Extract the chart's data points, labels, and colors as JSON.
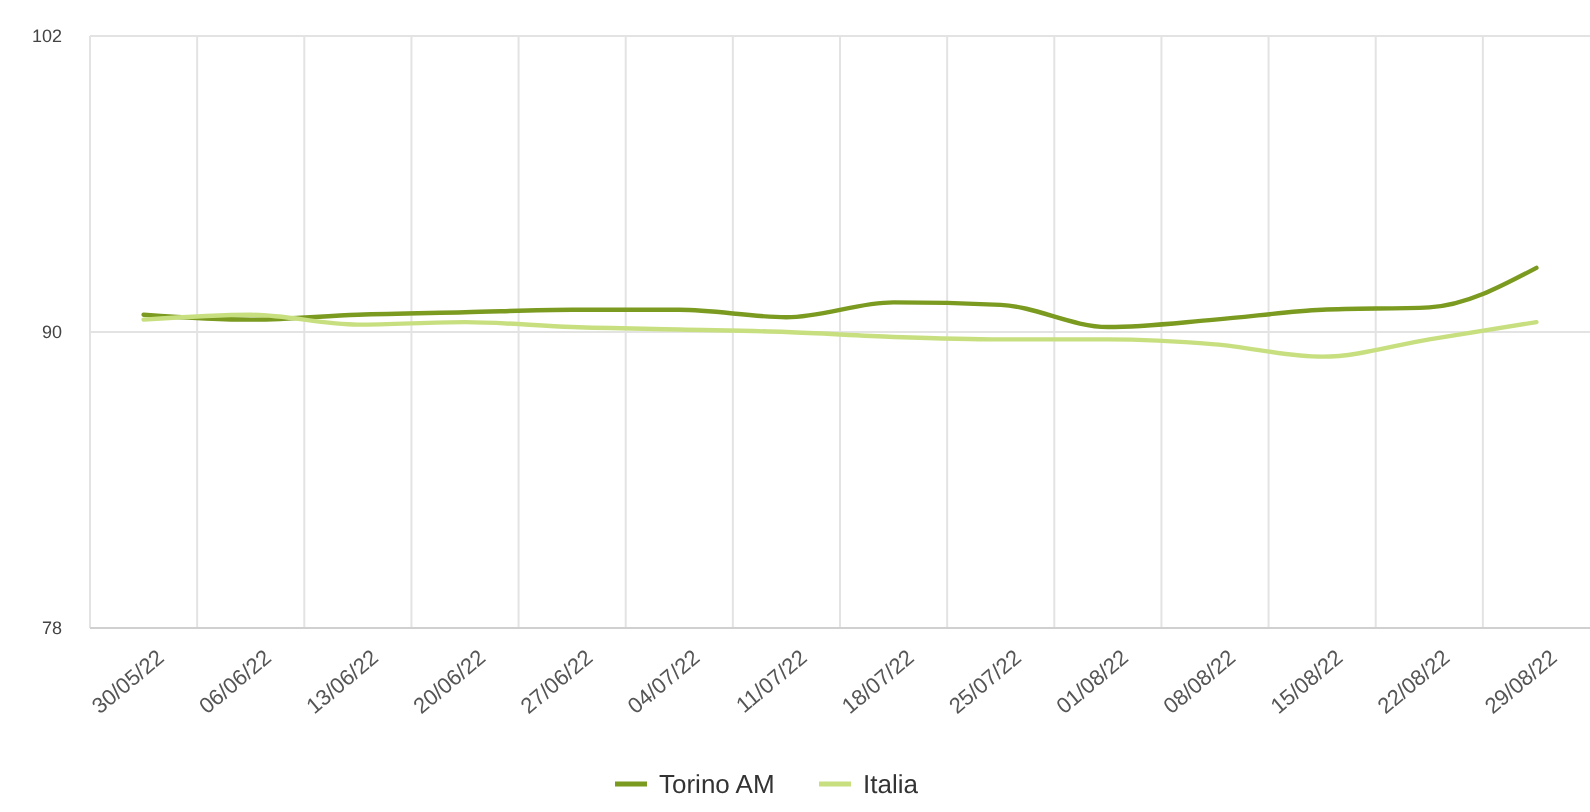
{
  "chart_data": {
    "type": "line",
    "categories": [
      "30/05/22",
      "06/06/22",
      "13/06/22",
      "20/06/22",
      "27/06/22",
      "04/07/22",
      "11/07/22",
      "18/07/22",
      "25/07/22",
      "01/08/22",
      "08/08/22",
      "15/08/22",
      "22/08/22",
      "29/08/22"
    ],
    "series": [
      {
        "name": "Torino AM",
        "color": "#7b9a20",
        "values": [
          90.7,
          90.5,
          90.7,
          90.8,
          90.9,
          90.9,
          90.6,
          91.2,
          91.1,
          90.2,
          90.5,
          90.9,
          91.0,
          92.6
        ]
      },
      {
        "name": "Italia",
        "color": "#c8df80",
        "values": [
          90.5,
          90.7,
          90.3,
          90.4,
          90.2,
          90.1,
          90.0,
          89.8,
          89.7,
          89.7,
          89.5,
          89.0,
          89.7,
          90.4
        ]
      }
    ],
    "ylim": [
      78,
      102
    ],
    "yticks": [
      78,
      90,
      102
    ],
    "grid": true,
    "legend": "bottom",
    "marker": "none",
    "line_style": "solid"
  }
}
